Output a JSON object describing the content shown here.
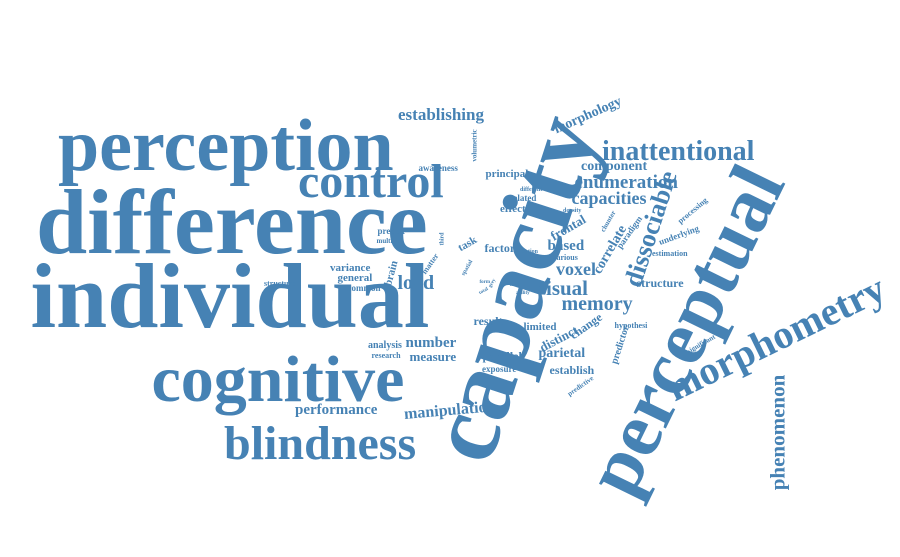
{
  "colors": {
    "word": "#4682b4",
    "background": "#ffffff"
  },
  "words": [
    {
      "text": "capacity"
    },
    {
      "text": "perceptual"
    },
    {
      "text": "difference"
    },
    {
      "text": "individual"
    },
    {
      "text": "perception"
    },
    {
      "text": "cognitive"
    },
    {
      "text": "morphometry"
    },
    {
      "text": "blindness"
    },
    {
      "text": "control"
    },
    {
      "text": "inattentional"
    },
    {
      "text": "enumeration"
    },
    {
      "text": "dissociable"
    },
    {
      "text": "capacities"
    },
    {
      "text": "memory"
    },
    {
      "text": "visual"
    },
    {
      "text": "voxel"
    },
    {
      "text": "phenomenon"
    },
    {
      "text": "establishing"
    },
    {
      "text": "morphology"
    },
    {
      "text": "component"
    },
    {
      "text": "load"
    },
    {
      "text": "manipulation"
    },
    {
      "text": "performance"
    },
    {
      "text": "based"
    },
    {
      "text": "frontal"
    },
    {
      "text": "correlate"
    },
    {
      "text": "parietal"
    },
    {
      "text": "establish"
    },
    {
      "text": "parallel"
    },
    {
      "text": "exposure"
    },
    {
      "text": "result"
    },
    {
      "text": "number"
    },
    {
      "text": "measure"
    },
    {
      "text": "analysis"
    },
    {
      "text": "research"
    },
    {
      "text": "variance"
    },
    {
      "text": "general"
    },
    {
      "text": "common"
    },
    {
      "text": "structural"
    },
    {
      "text": "brain"
    },
    {
      "text": "matter"
    },
    {
      "text": "predict"
    },
    {
      "text": "multiple"
    },
    {
      "text": "task"
    },
    {
      "text": "factor"
    },
    {
      "text": "motion"
    },
    {
      "text": "effect"
    },
    {
      "text": "related"
    },
    {
      "text": "different"
    },
    {
      "text": "density"
    },
    {
      "text": "principal"
    },
    {
      "text": "awareness"
    },
    {
      "text": "volumetric"
    },
    {
      "text": "third"
    },
    {
      "text": "limited"
    },
    {
      "text": "distinct"
    },
    {
      "text": "change"
    },
    {
      "text": "predictor"
    },
    {
      "text": "predictive"
    },
    {
      "text": "hypothesi"
    },
    {
      "text": "structure"
    },
    {
      "text": "estimation"
    },
    {
      "text": "underlying"
    },
    {
      "text": "processing"
    },
    {
      "text": "paradigm"
    },
    {
      "text": "chunter"
    },
    {
      "text": "various"
    },
    {
      "text": "significant"
    },
    {
      "text": "ability"
    },
    {
      "text": "limit"
    },
    {
      "text": "grey"
    },
    {
      "text": "total"
    },
    {
      "text": "form"
    },
    {
      "text": "spatial"
    }
  ]
}
